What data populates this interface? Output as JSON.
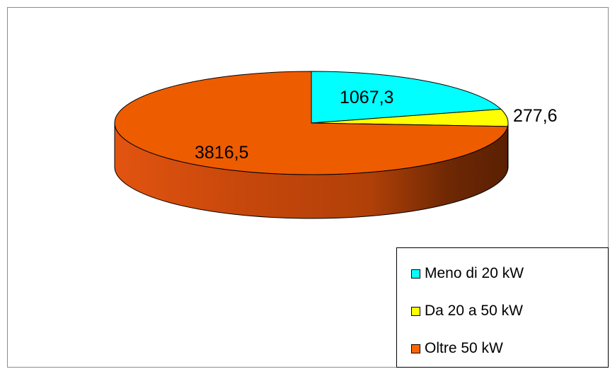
{
  "chart_data": {
    "type": "pie",
    "title": "",
    "slices": [
      {
        "label": "Meno di 20 kW",
        "value": 1067.3,
        "display": "1067,3",
        "color": "#00ffff"
      },
      {
        "label": "Da 20 a 50 kW",
        "value": 277.6,
        "display": "277,6",
        "color": "#ffff00"
      },
      {
        "label": "Oltre 50 kW",
        "value": 3816.5,
        "display": "3816,5",
        "color": "#ff6600"
      }
    ],
    "legend_position": "bottom-right",
    "style": "3d"
  },
  "legend": {
    "items": [
      {
        "label": "Meno di 20 kW",
        "color": "#00ffff"
      },
      {
        "label": "Da 20 a 50 kW",
        "color": "#ffff00"
      },
      {
        "label": "Oltre 50 kW",
        "color": "#ff6600"
      }
    ]
  }
}
